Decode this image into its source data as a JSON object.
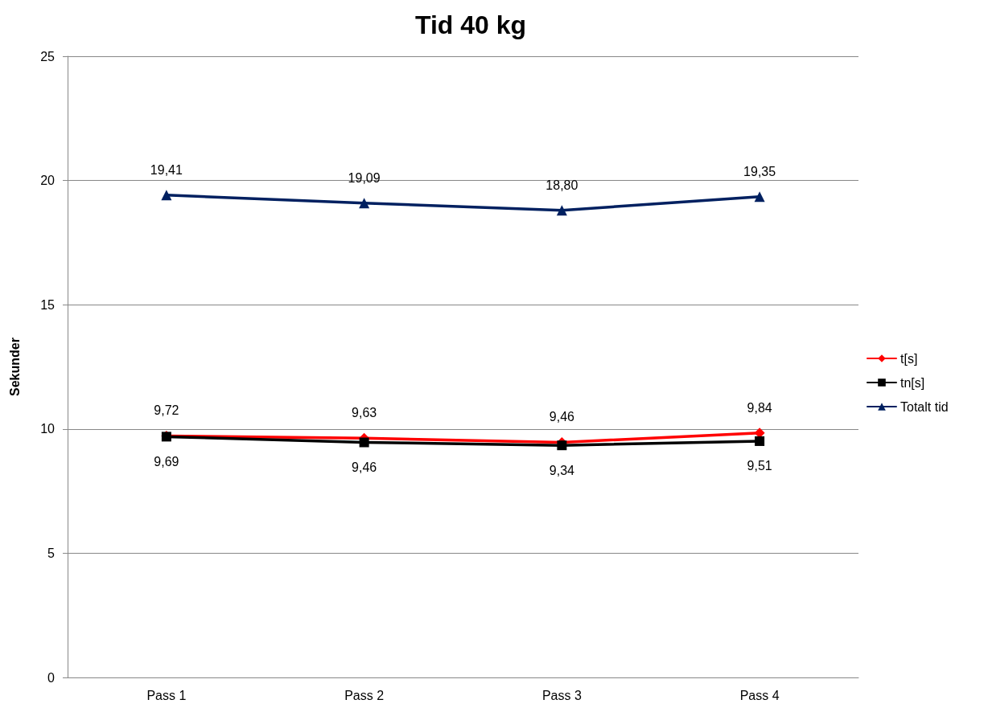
{
  "chart_data": {
    "type": "line",
    "title": "Tid 40 kg",
    "ylabel": "Sekunder",
    "categories": [
      "Pass 1",
      "Pass 2",
      "Pass 3",
      "Pass 4"
    ],
    "series": [
      {
        "name": "t[s]",
        "color": "#ff0000",
        "marker": "diamond",
        "values": [
          9.72,
          9.63,
          9.46,
          9.84
        ],
        "value_labels": [
          "9,72",
          "9,63",
          "9,46",
          "9,84"
        ]
      },
      {
        "name": "tn[s]",
        "color": "#000000",
        "marker": "square",
        "values": [
          9.69,
          9.46,
          9.34,
          9.51
        ],
        "value_labels": [
          "9,69",
          "9,46",
          "9,34",
          "9,51"
        ]
      },
      {
        "name": "Totalt tid",
        "color": "#002060",
        "marker": "triangle",
        "values": [
          19.41,
          19.09,
          18.8,
          19.35
        ],
        "value_labels": [
          "19,41",
          "19,09",
          "18,80",
          "19,35"
        ]
      }
    ],
    "ylim": [
      0,
      25
    ],
    "yticks": [
      0,
      5,
      10,
      15,
      20,
      25
    ],
    "grid": "y",
    "legend": "right",
    "line_style": "solid"
  }
}
